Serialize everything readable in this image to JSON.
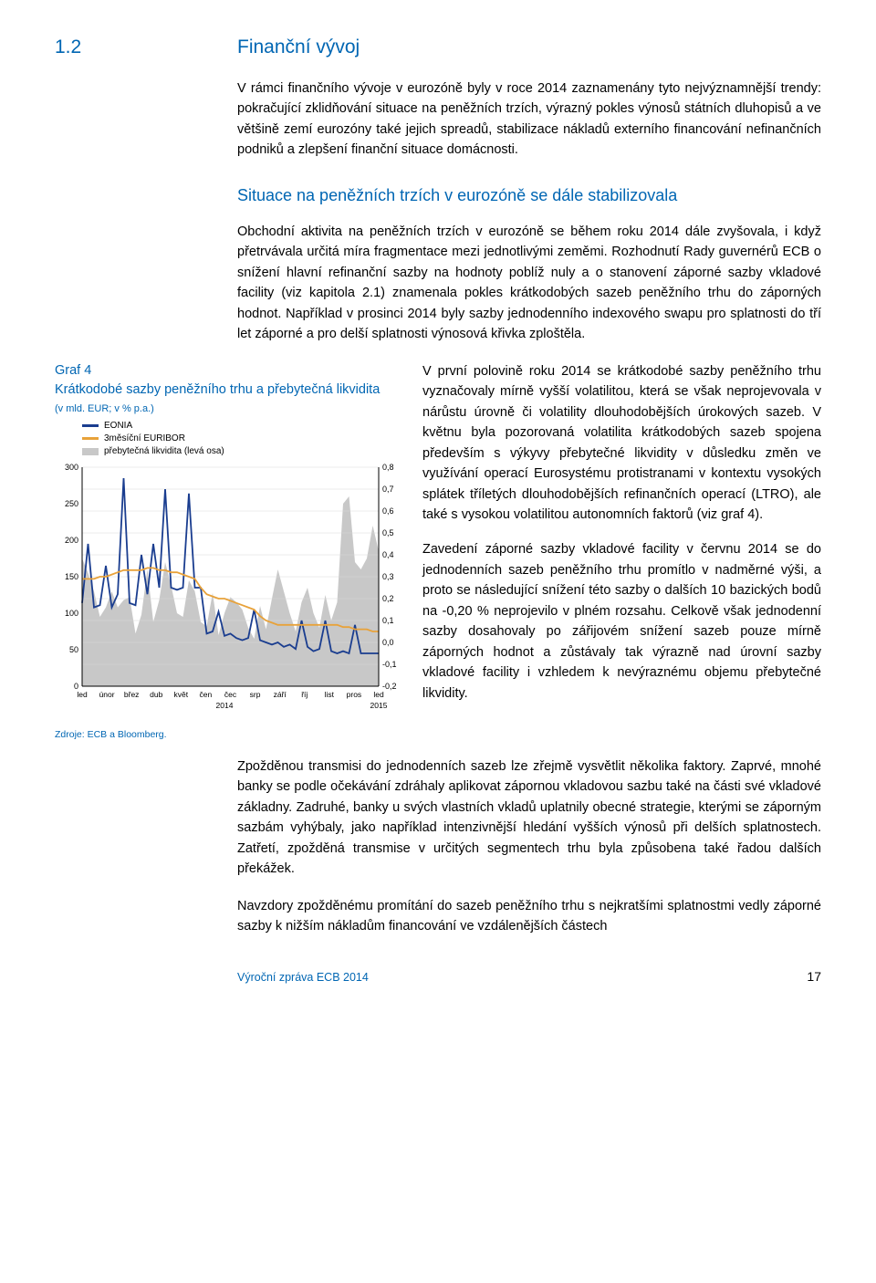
{
  "section": {
    "number": "1.2",
    "title": "Finanční vývoj"
  },
  "intro": "V rámci finančního vývoje v eurozóně byly v roce 2014 zaznamenány tyto nejvýznamnější trendy: pokračující zklidňování situace na peněžních trzích, výrazný pokles výnosů státních dluhopisů a ve většině zemí eurozóny také jejich spreadů, stabilizace nákladů externího financování nefinančních podniků a zlepšení finanční situace domácnosti.",
  "subheading": "Situace na peněžních trzích v eurozóně se dále stabilizovala",
  "para2": "Obchodní aktivita na peněžních trzích v eurozóně se během roku 2014 dále zvyšovala, i když přetrvávala určitá míra fragmentace mezi jednotlivými zeměmi. Rozhodnutí Rady guvernérů ECB o snížení hlavní refinanční sazby na hodnoty poblíž nuly a o stanovení záporné sazby vkladové facility (viz kapitola 2.1) znamenala pokles krátkodobých sazeb peněžního trhu do záporných hodnot. Například v prosinci 2014 byly sazby jednodenního indexového swapu pro splatnosti do tří let záporné a pro delší splatnosti výnosová křivka zploštěla.",
  "col_para1": "V první polovině roku 2014 se krátkodobé sazby peněžního trhu vyznačovaly mírně vyšší volatilitou, která se však neprojevovala v nárůstu úrovně či volatility dlouhodobějších úrokových sazeb. V květnu byla pozorovaná volatilita krátkodobých sazeb spojena především s výkyvy přebytečné likvidity v důsledku změn ve využívání operací Eurosystému protistranami v kontextu vysokých splátek tříletých dlouhodobějších refinančních operací (LTRO), ale také s vysokou volatilitou autonomních faktorů (viz graf 4).",
  "col_para2": "Zavedení záporné sazby vkladové facility v červnu 2014 se do jednodenních sazeb peněžního trhu promítlo v nadměrné výši, a proto se následující snížení této sazby o dalších 10 bazických bodů na -0,20 % neprojevilo v plném rozsahu. Celkově však jednodenní sazby dosahovaly po zářijovém snížení sazeb pouze mírně záporných hodnot a zůstávaly tak výrazně nad úrovní sazby vkladové facility i vzhledem k nevýraznému objemu přebytečné likvidity.",
  "para3": "Zpožděnou transmisi do jednodenních sazeb lze zřejmě vysvětlit několika faktory. Zaprvé, mnohé banky se podle očekávání zdráhaly aplikovat zápornou vkladovou sazbu také na části své vkladové základny. Zadruhé, banky u svých vlastních vkladů uplatnily obecné strategie, kterými se záporným sazbám vyhýbaly, jako například intenzivnější hledání vyšších výnosů při delších splatnostech. Zatřetí, zpožděná transmise v určitých segmentech trhu byla způsobena také řadou dalších překážek.",
  "para4": "Navzdory zpožděnému promítání do sazeb peněžního trhu s nejkratšími splatnostmi vedly záporné sazby k nižším nákladům financování ve vzdálenějších částech",
  "chart": {
    "label": "Graf 4",
    "title": "Krátkodobé sazby peněžního trhu a přebytečná likvidita",
    "units": "(v mld. EUR; v % p.a.)",
    "legend": {
      "eonia": "EONIA",
      "euribor": "3měsíční EURIBOR",
      "liquidity": "přebytečná likvidita (levá osa)"
    },
    "colors": {
      "eonia": "#1a3d8f",
      "euribor": "#e8a23a",
      "liquidity": "#c8c8c8",
      "axis": "#000000",
      "grid": "#d8d8d8"
    },
    "left_axis": {
      "min": 0,
      "max": 300,
      "step": 50,
      "ticks": [
        "0",
        "50",
        "100",
        "150",
        "200",
        "250",
        "300"
      ]
    },
    "right_axis": {
      "min": -0.2,
      "max": 0.8,
      "step": 0.1,
      "ticks": [
        "-0,2",
        "-0,1",
        "0,0",
        "0,1",
        "0,2",
        "0,3",
        "0,4",
        "0,5",
        "0,6",
        "0,7",
        "0,8"
      ]
    },
    "x_labels": [
      "led",
      "únor",
      "břez",
      "dub",
      "květ",
      "čen",
      "čec",
      "srp",
      "září",
      "říj",
      "list",
      "pros",
      "led"
    ],
    "x_year_left": "2014",
    "x_year_right": "2015",
    "liquidity_values": [
      175,
      155,
      130,
      95,
      108,
      130,
      108,
      118,
      122,
      72,
      98,
      160,
      88,
      118,
      170,
      138,
      100,
      95,
      145,
      130,
      88,
      82,
      128,
      70,
      100,
      122,
      115,
      105,
      80,
      65,
      110,
      78,
      120,
      160,
      130,
      100,
      75,
      115,
      135,
      100,
      80,
      125,
      90,
      115,
      250,
      260,
      170,
      160,
      175,
      220,
      185
    ],
    "eonia_values": [
      0.18,
      0.45,
      0.16,
      0.17,
      0.35,
      0.16,
      0.22,
      0.75,
      0.18,
      0.17,
      0.4,
      0.22,
      0.45,
      0.25,
      0.7,
      0.25,
      0.24,
      0.25,
      0.68,
      0.25,
      0.25,
      0.04,
      0.05,
      0.14,
      0.03,
      0.04,
      0.02,
      0.01,
      0.02,
      0.15,
      0.01,
      0.0,
      -0.01,
      0.0,
      -0.02,
      -0.01,
      -0.03,
      0.1,
      -0.02,
      -0.04,
      -0.03,
      0.1,
      -0.04,
      -0.05,
      -0.04,
      -0.05,
      0.08,
      -0.05,
      -0.05,
      -0.05,
      -0.05
    ],
    "euribor_values": [
      0.29,
      0.29,
      0.29,
      0.3,
      0.3,
      0.31,
      0.32,
      0.33,
      0.33,
      0.33,
      0.33,
      0.34,
      0.34,
      0.33,
      0.33,
      0.32,
      0.32,
      0.31,
      0.3,
      0.29,
      0.25,
      0.22,
      0.21,
      0.2,
      0.2,
      0.19,
      0.18,
      0.17,
      0.16,
      0.15,
      0.12,
      0.1,
      0.09,
      0.08,
      0.08,
      0.08,
      0.08,
      0.08,
      0.08,
      0.08,
      0.08,
      0.08,
      0.08,
      0.08,
      0.07,
      0.07,
      0.06,
      0.06,
      0.06,
      0.05,
      0.05
    ],
    "source": "Zdroje: ECB a Bloomberg."
  },
  "footer": {
    "text": "Výroční zpráva ECB 2014",
    "page": "17"
  }
}
